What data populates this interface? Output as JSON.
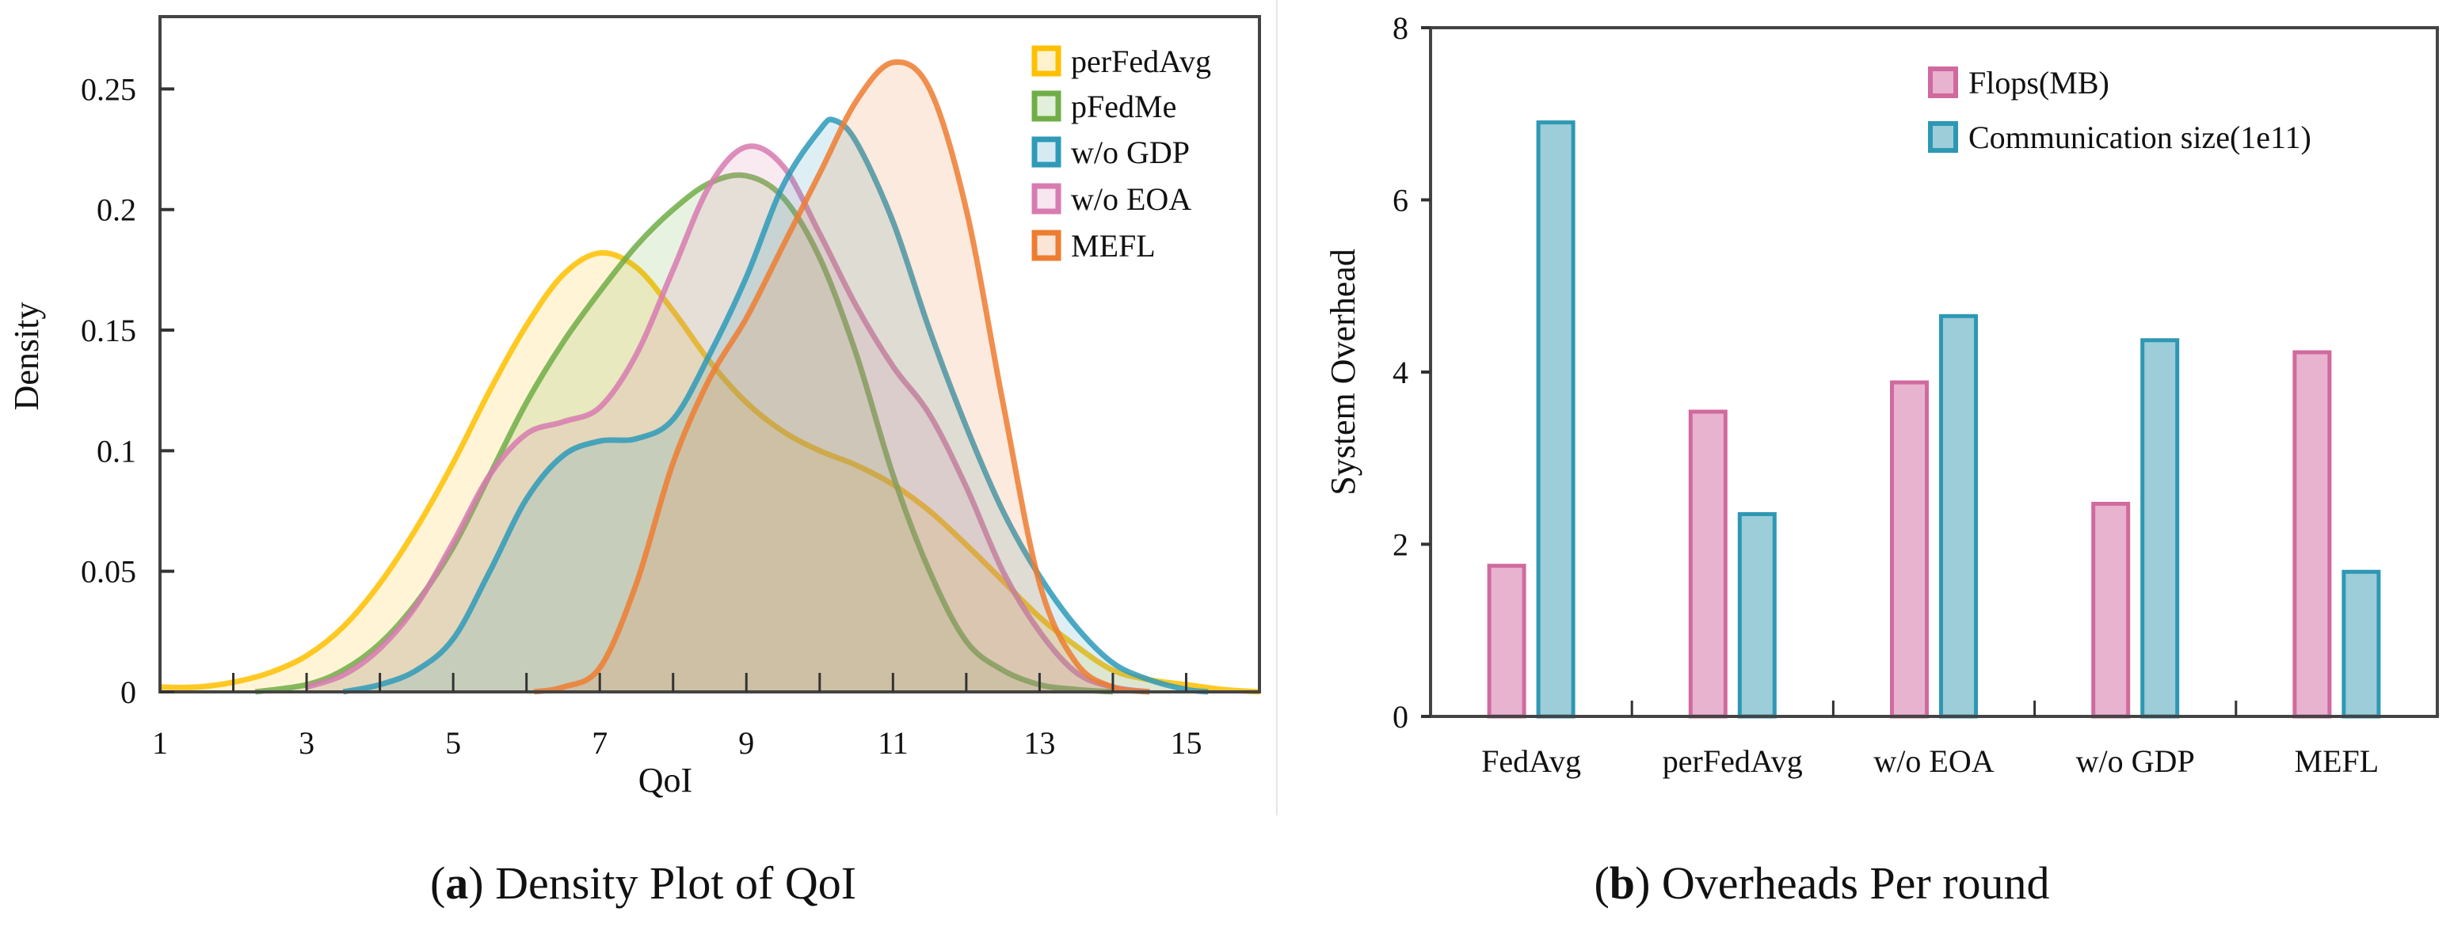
{
  "chart_data": [
    {
      "type": "area",
      "title": "Density Plot of QoI",
      "caption_label": "a",
      "xlabel": "QoI",
      "ylabel": "Density",
      "xlim": [
        1,
        16
      ],
      "ylim": [
        0,
        0.28
      ],
      "xticks": [
        1,
        3,
        5,
        7,
        9,
        11,
        13,
        15
      ],
      "xtick_labels": [
        "1",
        "3",
        "5",
        "7",
        "9",
        "11",
        "13",
        "15"
      ],
      "yticks": [
        0,
        0.05,
        0.1,
        0.15,
        0.2,
        0.25
      ],
      "ytick_labels": [
        "0",
        "0.05",
        "0.1",
        "0.15",
        "0.2",
        "0.25"
      ],
      "grid": false,
      "legend_position": "top-right",
      "series": [
        {
          "name": "perFedAvg",
          "color": "#FFC000",
          "points": [
            [
              1,
              0.002
            ],
            [
              1.5,
              0.002
            ],
            [
              2,
              0.004
            ],
            [
              2.5,
              0.008
            ],
            [
              3,
              0.015
            ],
            [
              3.5,
              0.027
            ],
            [
              4,
              0.045
            ],
            [
              4.5,
              0.068
            ],
            [
              5,
              0.095
            ],
            [
              5.5,
              0.125
            ],
            [
              6,
              0.152
            ],
            [
              6.5,
              0.173
            ],
            [
              7,
              0.182
            ],
            [
              7.5,
              0.176
            ],
            [
              8,
              0.158
            ],
            [
              8.5,
              0.137
            ],
            [
              9,
              0.12
            ],
            [
              9.5,
              0.108
            ],
            [
              10,
              0.1
            ],
            [
              10.5,
              0.094
            ],
            [
              11,
              0.086
            ],
            [
              11.5,
              0.075
            ],
            [
              12,
              0.061
            ],
            [
              12.5,
              0.046
            ],
            [
              13,
              0.031
            ],
            [
              13.5,
              0.019
            ],
            [
              14,
              0.009
            ],
            [
              14.5,
              0.005
            ],
            [
              15,
              0.003
            ],
            [
              15.5,
              0.001
            ],
            [
              16,
              0
            ]
          ]
        },
        {
          "name": "pFedMe",
          "color": "#70AD47",
          "points": [
            [
              2.3,
              0
            ],
            [
              3,
              0.003
            ],
            [
              3.5,
              0.009
            ],
            [
              4,
              0.02
            ],
            [
              4.5,
              0.037
            ],
            [
              5,
              0.06
            ],
            [
              5.5,
              0.09
            ],
            [
              6,
              0.12
            ],
            [
              6.5,
              0.145
            ],
            [
              7,
              0.166
            ],
            [
              7.5,
              0.185
            ],
            [
              8,
              0.2
            ],
            [
              8.5,
              0.211
            ],
            [
              9,
              0.214
            ],
            [
              9.5,
              0.205
            ],
            [
              10,
              0.18
            ],
            [
              10.5,
              0.14
            ],
            [
              11,
              0.09
            ],
            [
              11.5,
              0.05
            ],
            [
              12,
              0.021
            ],
            [
              12.5,
              0.009
            ],
            [
              13,
              0.003
            ],
            [
              13.5,
              0.001
            ],
            [
              14,
              0
            ]
          ]
        },
        {
          "name": "w/o GDP",
          "color": "#2E9AB8",
          "points": [
            [
              3.5,
              0
            ],
            [
              4,
              0.003
            ],
            [
              4.5,
              0.009
            ],
            [
              5,
              0.022
            ],
            [
              5.5,
              0.05
            ],
            [
              6,
              0.08
            ],
            [
              6.5,
              0.098
            ],
            [
              7,
              0.104
            ],
            [
              7.5,
              0.105
            ],
            [
              8,
              0.113
            ],
            [
              8.5,
              0.14
            ],
            [
              9,
              0.172
            ],
            [
              9.5,
              0.21
            ],
            [
              10,
              0.233
            ],
            [
              10.2,
              0.237
            ],
            [
              10.5,
              0.228
            ],
            [
              11,
              0.195
            ],
            [
              11.5,
              0.15
            ],
            [
              12,
              0.11
            ],
            [
              12.5,
              0.075
            ],
            [
              13,
              0.048
            ],
            [
              13.5,
              0.027
            ],
            [
              14,
              0.012
            ],
            [
              14.5,
              0.005
            ],
            [
              15,
              0.001
            ],
            [
              15.3,
              0
            ]
          ]
        },
        {
          "name": "w/o EOA",
          "color": "#D77BB0",
          "points": [
            [
              3,
              0.002
            ],
            [
              3.5,
              0.007
            ],
            [
              4,
              0.018
            ],
            [
              4.5,
              0.036
            ],
            [
              5,
              0.062
            ],
            [
              5.5,
              0.09
            ],
            [
              6,
              0.107
            ],
            [
              6.5,
              0.112
            ],
            [
              7,
              0.118
            ],
            [
              7.5,
              0.14
            ],
            [
              8,
              0.175
            ],
            [
              8.5,
              0.21
            ],
            [
              9,
              0.226
            ],
            [
              9.5,
              0.218
            ],
            [
              10,
              0.19
            ],
            [
              10.5,
              0.16
            ],
            [
              11,
              0.135
            ],
            [
              11.5,
              0.115
            ],
            [
              12,
              0.085
            ],
            [
              12.5,
              0.05
            ],
            [
              13,
              0.025
            ],
            [
              13.5,
              0.008
            ],
            [
              14,
              0.002
            ],
            [
              14.5,
              0
            ]
          ]
        },
        {
          "name": "MEFL",
          "color": "#ED7D31",
          "points": [
            [
              6.1,
              0
            ],
            [
              6.5,
              0.002
            ],
            [
              7,
              0.01
            ],
            [
              7.5,
              0.045
            ],
            [
              8,
              0.095
            ],
            [
              8.5,
              0.13
            ],
            [
              9,
              0.155
            ],
            [
              9.5,
              0.185
            ],
            [
              10,
              0.215
            ],
            [
              10.5,
              0.245
            ],
            [
              11,
              0.261
            ],
            [
              11.5,
              0.25
            ],
            [
              12,
              0.2
            ],
            [
              12.5,
              0.12
            ],
            [
              13,
              0.045
            ],
            [
              13.5,
              0.012
            ],
            [
              14,
              0.002
            ],
            [
              14.5,
              0
            ]
          ]
        }
      ]
    },
    {
      "type": "bar",
      "title": "Overheads Per round",
      "caption_label": "b",
      "xlabel": "",
      "ylabel": "System Overhead",
      "ylim": [
        0,
        8
      ],
      "yticks": [
        0,
        2,
        4,
        6,
        8
      ],
      "ytick_labels": [
        "0",
        "2",
        "4",
        "6",
        "8"
      ],
      "grid": false,
      "legend_position": "top-right",
      "categories": [
        "FedAvg",
        "perFedAvg",
        "w/o EOA",
        "w/o GDP",
        "MEFL"
      ],
      "series": [
        {
          "name": "Flops(MB)",
          "fill": "#E8B3CF",
          "stroke": "#D06A9E",
          "values": [
            1.75,
            3.54,
            3.88,
            2.47,
            4.23
          ]
        },
        {
          "name": "Communication size(1e11)",
          "fill": "#9CCDD9",
          "stroke": "#2E98B4",
          "values": [
            6.9,
            2.35,
            4.65,
            4.37,
            1.68
          ]
        }
      ]
    }
  ]
}
